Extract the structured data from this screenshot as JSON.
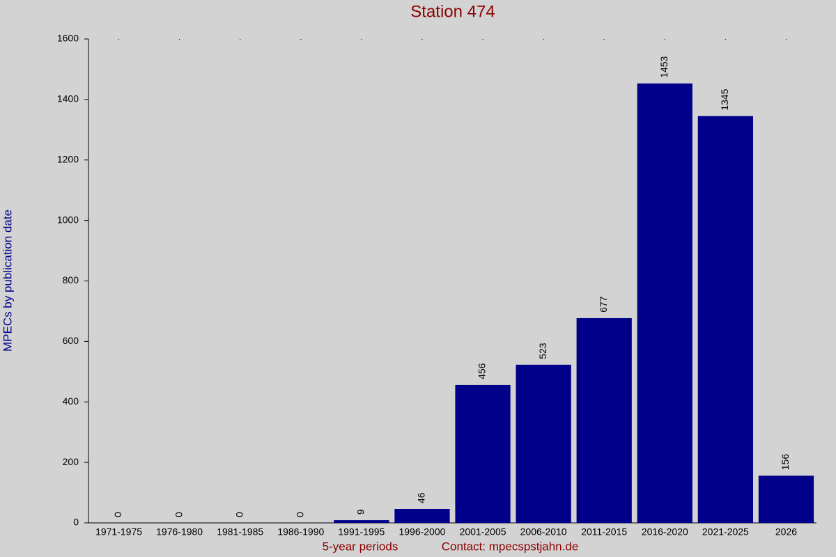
{
  "chart_data": {
    "type": "bar",
    "title": "Station 474",
    "x_label": "5-year periods",
    "contact": "Contact: mpecspstjahn.de",
    "y_label": "MPECs by publication date",
    "categories": [
      "1971-1975",
      "1976-1980",
      "1981-1985",
      "1986-1990",
      "1991-1995",
      "1996-2000",
      "2001-2005",
      "2006-2010",
      "2011-2015",
      "2016-2020",
      "2021-2025",
      "2026"
    ],
    "values": [
      0,
      0,
      0,
      0,
      9,
      46,
      456,
      523,
      677,
      1453,
      1345,
      156
    ],
    "color": "#00008b",
    "ylim": [
      0,
      1600
    ],
    "yticks": [
      0,
      200,
      400,
      600,
      800,
      1000,
      1200,
      1400,
      1600
    ]
  }
}
